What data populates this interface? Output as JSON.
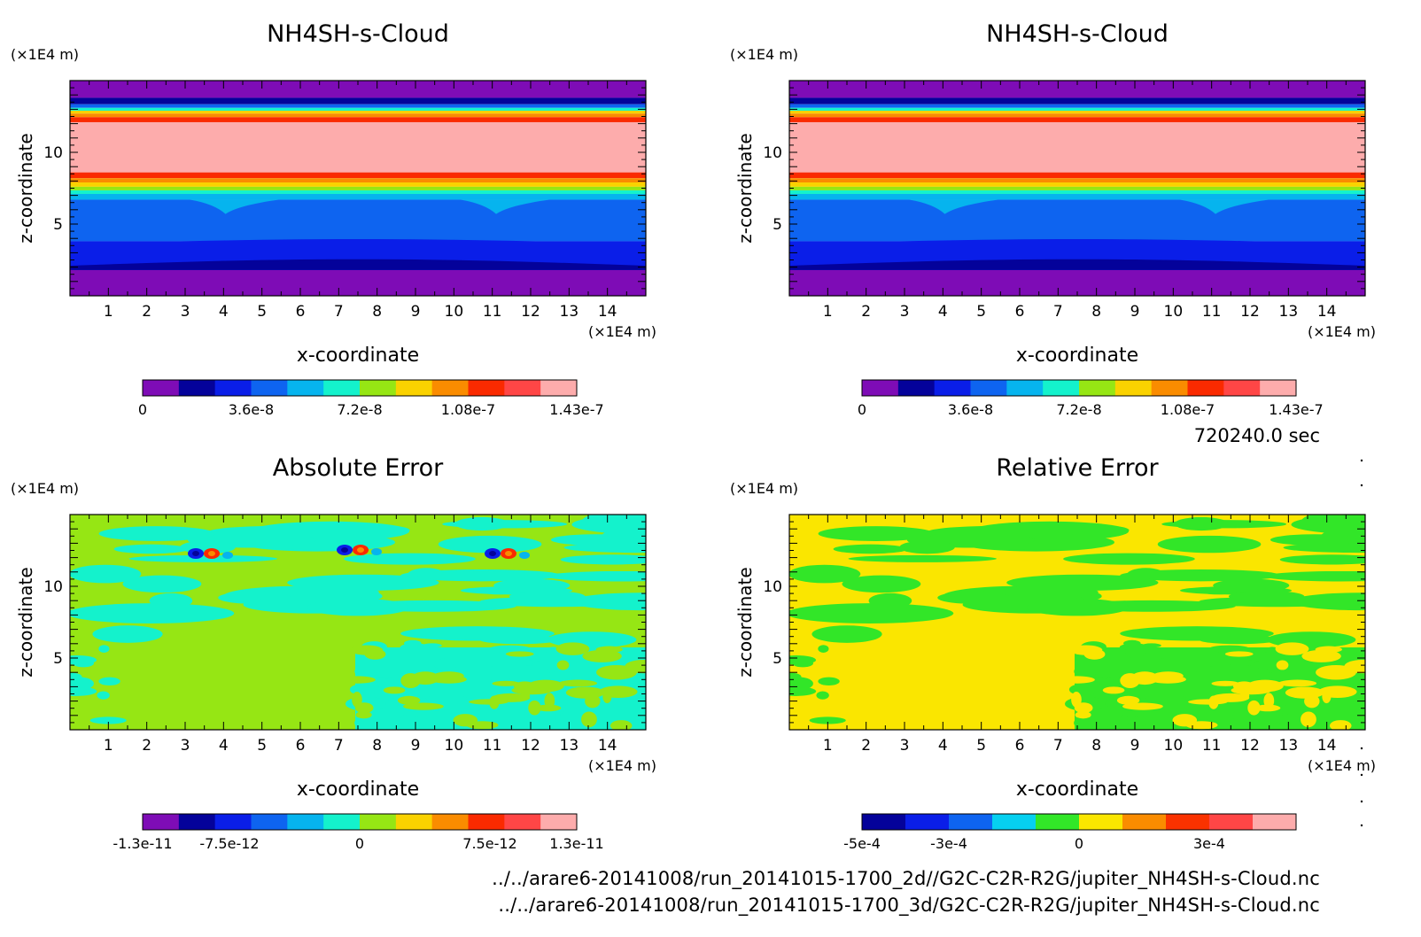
{
  "timestamp": "720240.0 sec",
  "footer": {
    "line1": "../../arare6-20141008/run_20141015-1700_2d//G2C-C2R-R2G/jupiter_NH4SH-s-Cloud.nc",
    "line2": "../../arare6-20141008/run_20141015-1700_3d/G2C-C2R-R2G/jupiter_NH4SH-s-Cloud.nc"
  },
  "colors": {
    "cloud_palette": [
      "#7e0cb6",
      "#04029a",
      "#0a1ee8",
      "#0e64f0",
      "#06b4ee",
      "#14f2cc",
      "#96e614",
      "#fad200",
      "#fa8c00",
      "#fa2a00",
      "#ff4646",
      "#fdacac"
    ],
    "abs_palette": [
      "#7e0cb6",
      "#04029a",
      "#0a1ee8",
      "#0e64f0",
      "#06b4ee",
      "#14f2cc",
      "#96e614",
      "#fad200",
      "#fa8c00",
      "#fa2a00",
      "#ff4646",
      "#fdacac"
    ],
    "rel_palette": [
      "#04029a",
      "#0a1ee8",
      "#0e64f0",
      "#06d0f0",
      "#32e628",
      "#fae600",
      "#fa8c00",
      "#fa3200",
      "#ff4646",
      "#fdacac"
    ]
  },
  "chart_data": [
    {
      "type": "heatmap",
      "title": "NH4SH-s-Cloud",
      "xlabel": "x-coordinate",
      "ylabel": "z-coordinate",
      "xunit": "(×1E4 m)",
      "yunit": "(×1E4 m)",
      "xlim": [
        0,
        15
      ],
      "ylim": [
        0,
        15
      ],
      "xticks": [
        "1",
        "2",
        "3",
        "4",
        "5",
        "6",
        "7",
        "8",
        "9",
        "10",
        "11",
        "12",
        "13",
        "14"
      ],
      "yticks": [
        "5",
        "10"
      ],
      "colorbar_labels": [
        "0",
        "3.6e-8",
        "7.2e-8",
        "1.08e-7",
        "1.43e-7"
      ],
      "colorbar_range": [
        0,
        1.43e-07
      ],
      "levels_z_vs_value": [
        [
          0,
          "purple"
        ],
        [
          1.8,
          "navy"
        ],
        [
          3.8,
          "blue"
        ],
        [
          6.5,
          "azure"
        ],
        [
          7.2,
          "cyan"
        ],
        [
          8.0,
          "orange"
        ],
        [
          8.6,
          "pink"
        ],
        [
          12.2,
          "red"
        ],
        [
          13.0,
          "cyan"
        ],
        [
          13.8,
          "purple"
        ]
      ]
    },
    {
      "type": "heatmap",
      "title": "NH4SH-s-Cloud",
      "xlabel": "x-coordinate",
      "ylabel": "z-coordinate",
      "xunit": "(×1E4 m)",
      "yunit": "(×1E4 m)",
      "xlim": [
        0,
        15
      ],
      "ylim": [
        0,
        15
      ],
      "xticks": [
        "1",
        "2",
        "3",
        "4",
        "5",
        "6",
        "7",
        "8",
        "9",
        "10",
        "11",
        "12",
        "13",
        "14"
      ],
      "yticks": [
        "5",
        "10"
      ],
      "colorbar_labels": [
        "0",
        "3.6e-8",
        "7.2e-8",
        "1.08e-7",
        "1.43e-7"
      ],
      "colorbar_range": [
        0,
        1.43e-07
      ]
    },
    {
      "type": "heatmap",
      "title": "Absolute Error",
      "xlabel": "x-coordinate",
      "ylabel": "z-coordinate",
      "xunit": "(×1E4 m)",
      "yunit": "(×1E4 m)",
      "xlim": [
        0,
        15
      ],
      "ylim": [
        0,
        15
      ],
      "xticks": [
        "1",
        "2",
        "3",
        "4",
        "5",
        "6",
        "7",
        "8",
        "9",
        "10",
        "11",
        "12",
        "13",
        "14"
      ],
      "yticks": [
        "5",
        "10"
      ],
      "colorbar_labels": [
        "-1.3e-11",
        "-7.5e-12",
        "0",
        "7.5e-12",
        "1.3e-11"
      ],
      "colorbar_range": [
        -1.3e-11,
        1.3e-11
      ]
    },
    {
      "type": "heatmap",
      "title": "Relative Error",
      "xlabel": "x-coordinate",
      "ylabel": "z-coordinate",
      "xunit": "(×1E4 m)",
      "yunit": "(×1E4 m)",
      "xlim": [
        0,
        15
      ],
      "ylim": [
        0,
        15
      ],
      "xticks": [
        "1",
        "2",
        "3",
        "4",
        "5",
        "6",
        "7",
        "8",
        "9",
        "10",
        "11",
        "12",
        "13",
        "14"
      ],
      "yticks": [
        "5",
        "10"
      ],
      "colorbar_labels": [
        "-5e-4",
        "-3e-4",
        "0",
        "3e-4"
      ],
      "colorbar_range": [
        -0.0005,
        0.0005
      ]
    }
  ]
}
